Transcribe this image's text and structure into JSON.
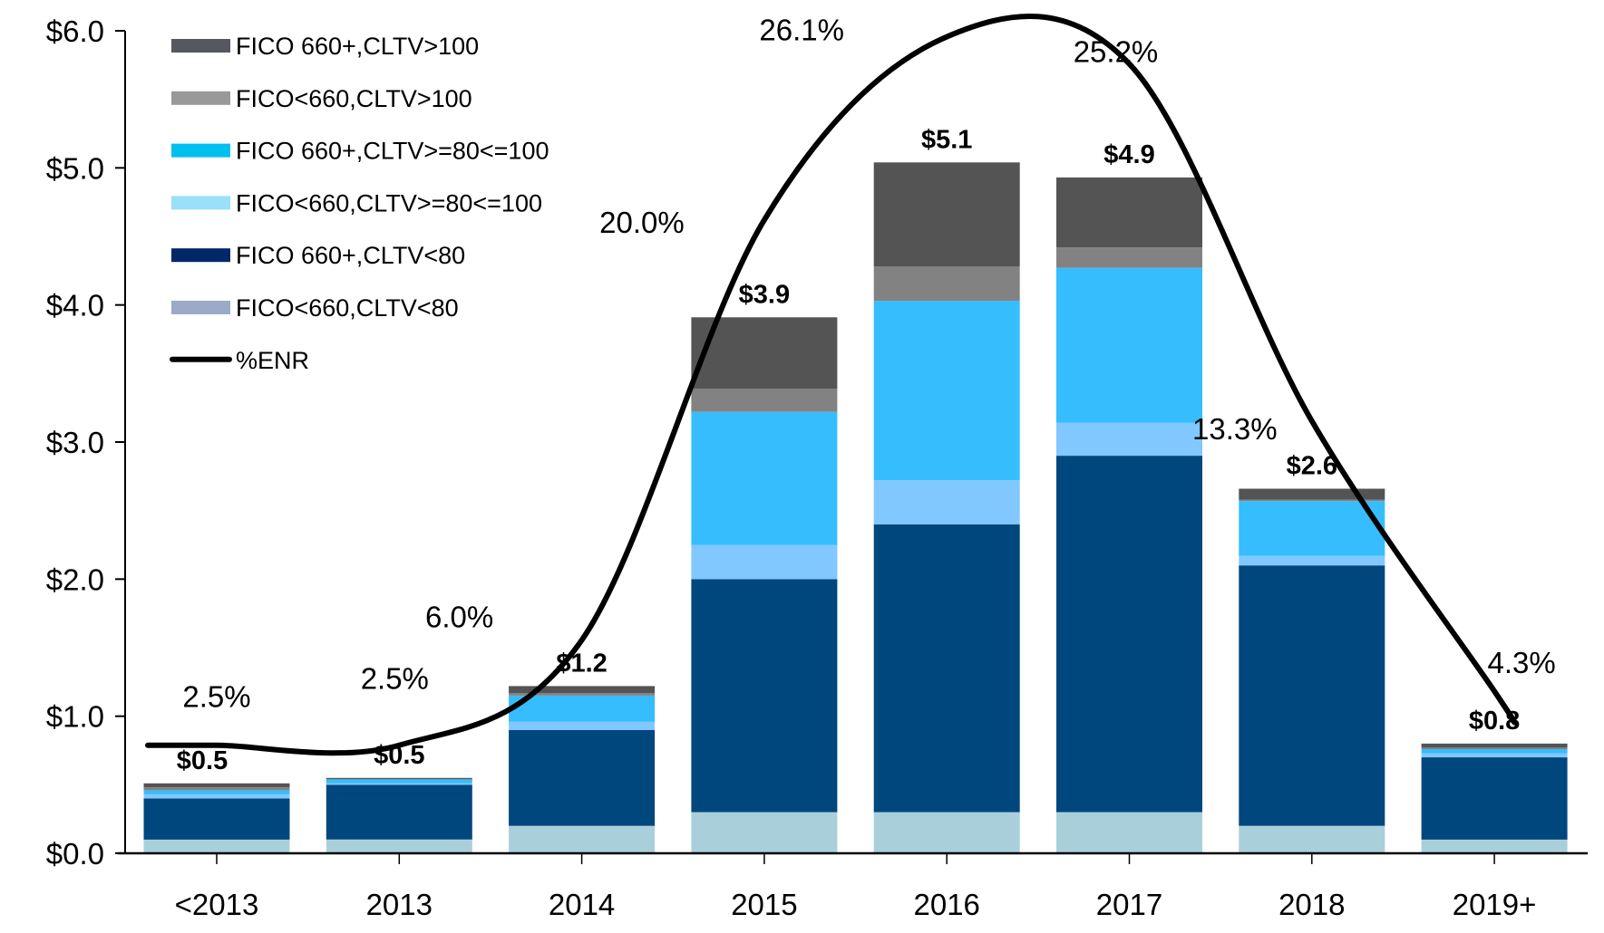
{
  "chart_data": {
    "type": "bar",
    "stacked": true,
    "title": "",
    "xlabel": "",
    "ylabel": "",
    "categories": [
      "<2013",
      "2013",
      "2014",
      "2015",
      "2016",
      "2017",
      "2018",
      "2019+"
    ],
    "ylim": [
      0,
      6
    ],
    "yticks": [
      0,
      1,
      2,
      3,
      4,
      5,
      6
    ],
    "ytick_labels": [
      "$0.0",
      "$1.0",
      "$2.0",
      "$3.0",
      "$4.0",
      "$5.0",
      "$6.0"
    ],
    "grid": false,
    "legend_position": "top-left",
    "series": [
      {
        "name": "FICO<660,CLTV<80",
        "color": "#a9d0da",
        "legend_color": "#9aaac8",
        "values": [
          0.1,
          0.1,
          0.2,
          0.3,
          0.3,
          0.3,
          0.2,
          0.1
        ]
      },
      {
        "name": "FICO 660+,CLTV<80",
        "color": "#00477d",
        "legend_color": "#002868",
        "values": [
          0.3,
          0.4,
          0.7,
          1.7,
          2.1,
          2.6,
          1.9,
          0.6
        ]
      },
      {
        "name": "FICO<660,CLTV>=80<=100",
        "color": "#80c8ff",
        "legend_color": "#99e0f8",
        "values": [
          0.03,
          0.01,
          0.06,
          0.25,
          0.32,
          0.24,
          0.07,
          0.03
        ]
      },
      {
        "name": "FICO 660+,CLTV>=80<=100",
        "color": "#36bdfd",
        "legend_color": "#00c0f0",
        "values": [
          0.03,
          0.03,
          0.19,
          0.97,
          1.31,
          1.13,
          0.4,
          0.03
        ]
      },
      {
        "name": "FICO<660,CLTV>100",
        "color": "#828282",
        "legend_color": "#999999",
        "values": [
          0.02,
          0.0,
          0.02,
          0.17,
          0.25,
          0.15,
          0.01,
          0.01
        ]
      },
      {
        "name": "FICO 660+,CLTV>100",
        "color": "#545454",
        "legend_color": "#55585e",
        "values": [
          0.03,
          0.01,
          0.05,
          0.52,
          0.76,
          0.51,
          0.08,
          0.03
        ]
      }
    ],
    "totals": [
      0.5,
      0.5,
      1.2,
      3.9,
      5.1,
      4.9,
      2.6,
      0.8
    ],
    "total_labels": [
      "$0.5",
      "$0.5",
      "$1.2",
      "$3.9",
      "$5.1",
      "$4.9",
      "$2.6",
      "$0.8"
    ],
    "line_series": {
      "name": "%ENR",
      "color": "#000000",
      "axis": "secondary (hidden)",
      "secondary_ylim": [
        -1.1,
        26.3
      ],
      "values": [
        2.5,
        2.5,
        6.0,
        20.0,
        26.1,
        25.2,
        13.3,
        4.3
      ],
      "labels": [
        "2.5%",
        "2.5%",
        "6.0%",
        "20.0%",
        "26.1%",
        "25.2%",
        "13.3%",
        "4.3%"
      ],
      "smoothed": true
    },
    "legend": [
      {
        "label": "FICO 660+,CLTV>100",
        "color": "#55585e",
        "kind": "bar"
      },
      {
        "label": "FICO<660,CLTV>100",
        "color": "#999999",
        "kind": "bar"
      },
      {
        "label": "FICO 660+,CLTV>=80<=100",
        "color": "#00c0f0",
        "kind": "bar"
      },
      {
        "label": "FICO<660,CLTV>=80<=100",
        "color": "#99e0f8",
        "kind": "bar"
      },
      {
        "label": "FICO 660+,CLTV<80",
        "color": "#002868",
        "kind": "bar"
      },
      {
        "label": "FICO<660,CLTV<80",
        "color": "#9aaac8",
        "kind": "bar"
      },
      {
        "label": "%ENR",
        "color": "#000000",
        "kind": "line"
      }
    ]
  }
}
